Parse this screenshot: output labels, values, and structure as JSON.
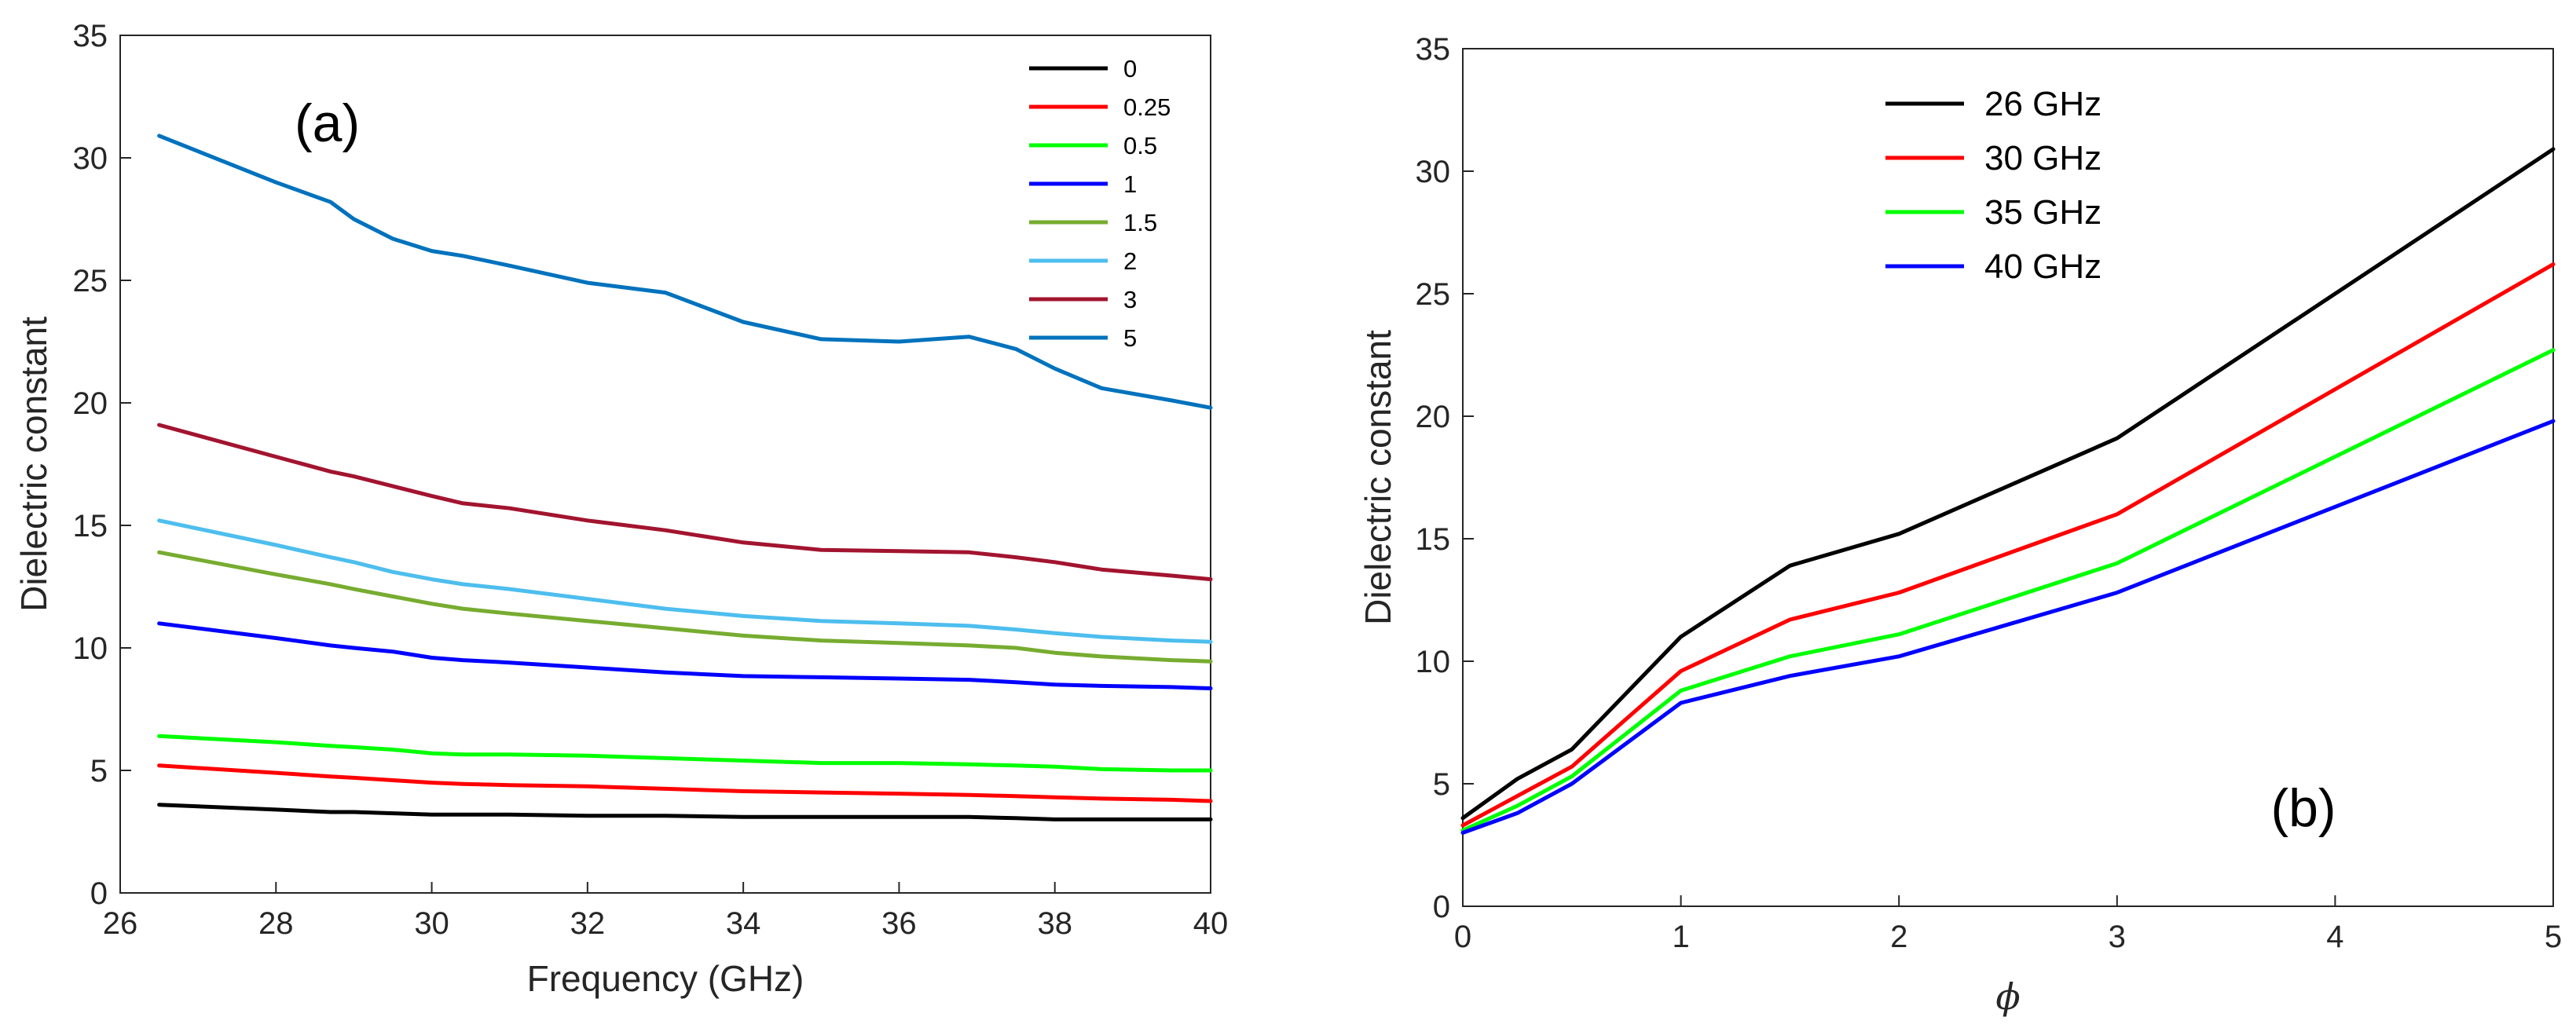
{
  "chart_data": [
    {
      "type": "line",
      "panel_label": "(a)",
      "xlabel": "Frequency (GHz)",
      "ylabel": "Dielectric constant",
      "xlim": [
        26,
        40
      ],
      "ylim": [
        0,
        35
      ],
      "xticks": [
        "26",
        "28",
        "30",
        "32",
        "34",
        "36",
        "38",
        "40"
      ],
      "yticks": [
        "0",
        "5",
        "10",
        "15",
        "20",
        "25",
        "30",
        "35"
      ],
      "legend_position": "top-right",
      "x": [
        26.5,
        28,
        28.7,
        29,
        29.5,
        30,
        30.4,
        31,
        32,
        33,
        34,
        35,
        36,
        36.9,
        37.5,
        38,
        38.6,
        39.5,
        40
      ],
      "series": [
        {
          "name": "0",
          "color": "#000000",
          "values": [
            3.6,
            3.4,
            3.3,
            3.3,
            3.25,
            3.2,
            3.2,
            3.2,
            3.15,
            3.15,
            3.1,
            3.1,
            3.1,
            3.1,
            3.05,
            3.0,
            3.0,
            3.0,
            3.0
          ]
        },
        {
          "name": "0.25",
          "color": "#ff0000",
          "values": [
            5.2,
            4.9,
            4.75,
            4.7,
            4.6,
            4.5,
            4.45,
            4.4,
            4.35,
            4.25,
            4.15,
            4.1,
            4.05,
            4.0,
            3.95,
            3.9,
            3.85,
            3.8,
            3.75
          ]
        },
        {
          "name": "0.5",
          "color": "#00ff00",
          "values": [
            6.4,
            6.15,
            6.0,
            5.95,
            5.85,
            5.7,
            5.65,
            5.65,
            5.6,
            5.5,
            5.4,
            5.3,
            5.3,
            5.25,
            5.2,
            5.15,
            5.05,
            5.0,
            5.0
          ]
        },
        {
          "name": "1",
          "color": "#0000ff",
          "values": [
            11.0,
            10.4,
            10.1,
            10.0,
            9.85,
            9.6,
            9.5,
            9.4,
            9.2,
            9.0,
            8.85,
            8.8,
            8.75,
            8.7,
            8.6,
            8.5,
            8.45,
            8.4,
            8.35
          ]
        },
        {
          "name": "1.5",
          "color": "#77ac30",
          "values": [
            13.9,
            13.0,
            12.6,
            12.4,
            12.1,
            11.8,
            11.6,
            11.4,
            11.1,
            10.8,
            10.5,
            10.3,
            10.2,
            10.1,
            10.0,
            9.8,
            9.65,
            9.5,
            9.45
          ]
        },
        {
          "name": "2",
          "color": "#4dbeee",
          "values": [
            15.2,
            14.2,
            13.7,
            13.5,
            13.1,
            12.8,
            12.6,
            12.4,
            12.0,
            11.6,
            11.3,
            11.1,
            11.0,
            10.9,
            10.75,
            10.6,
            10.45,
            10.3,
            10.25
          ]
        },
        {
          "name": "3",
          "color": "#a2142f",
          "values": [
            19.1,
            17.8,
            17.2,
            17.0,
            16.6,
            16.2,
            15.9,
            15.7,
            15.2,
            14.8,
            14.3,
            14.0,
            13.95,
            13.9,
            13.7,
            13.5,
            13.2,
            12.95,
            12.8
          ]
        },
        {
          "name": "5",
          "color": "#0072bd",
          "values": [
            30.9,
            29.0,
            28.2,
            27.5,
            26.7,
            26.2,
            26.0,
            25.6,
            24.9,
            24.5,
            23.3,
            22.6,
            22.5,
            22.7,
            22.2,
            21.4,
            20.6,
            20.1,
            19.8
          ]
        }
      ]
    },
    {
      "type": "line",
      "panel_label": "(b)",
      "xlabel": "ϕ",
      "ylabel": "Dielectric constant",
      "xlim": [
        0,
        5
      ],
      "ylim": [
        0,
        35
      ],
      "xticks": [
        "0",
        "1",
        "2",
        "3",
        "4",
        "5"
      ],
      "yticks": [
        "0",
        "5",
        "10",
        "15",
        "20",
        "25",
        "30",
        "35"
      ],
      "legend_position": "top-center",
      "x": [
        0,
        0.25,
        0.5,
        1,
        1.5,
        2,
        3,
        5
      ],
      "series": [
        {
          "name": "26 GHz",
          "color": "#000000",
          "values": [
            3.6,
            5.2,
            6.4,
            11.0,
            13.9,
            15.2,
            19.1,
            30.9
          ]
        },
        {
          "name": "30 GHz",
          "color": "#ff0000",
          "values": [
            3.3,
            4.5,
            5.7,
            9.6,
            11.7,
            12.8,
            16.0,
            26.2
          ]
        },
        {
          "name": "35 GHz",
          "color": "#00ff00",
          "values": [
            3.1,
            4.1,
            5.3,
            8.8,
            10.2,
            11.1,
            14.0,
            22.7
          ]
        },
        {
          "name": "40 GHz",
          "color": "#0000ff",
          "values": [
            3.0,
            3.8,
            5.0,
            8.3,
            9.4,
            10.2,
            12.8,
            19.8
          ]
        }
      ]
    }
  ]
}
